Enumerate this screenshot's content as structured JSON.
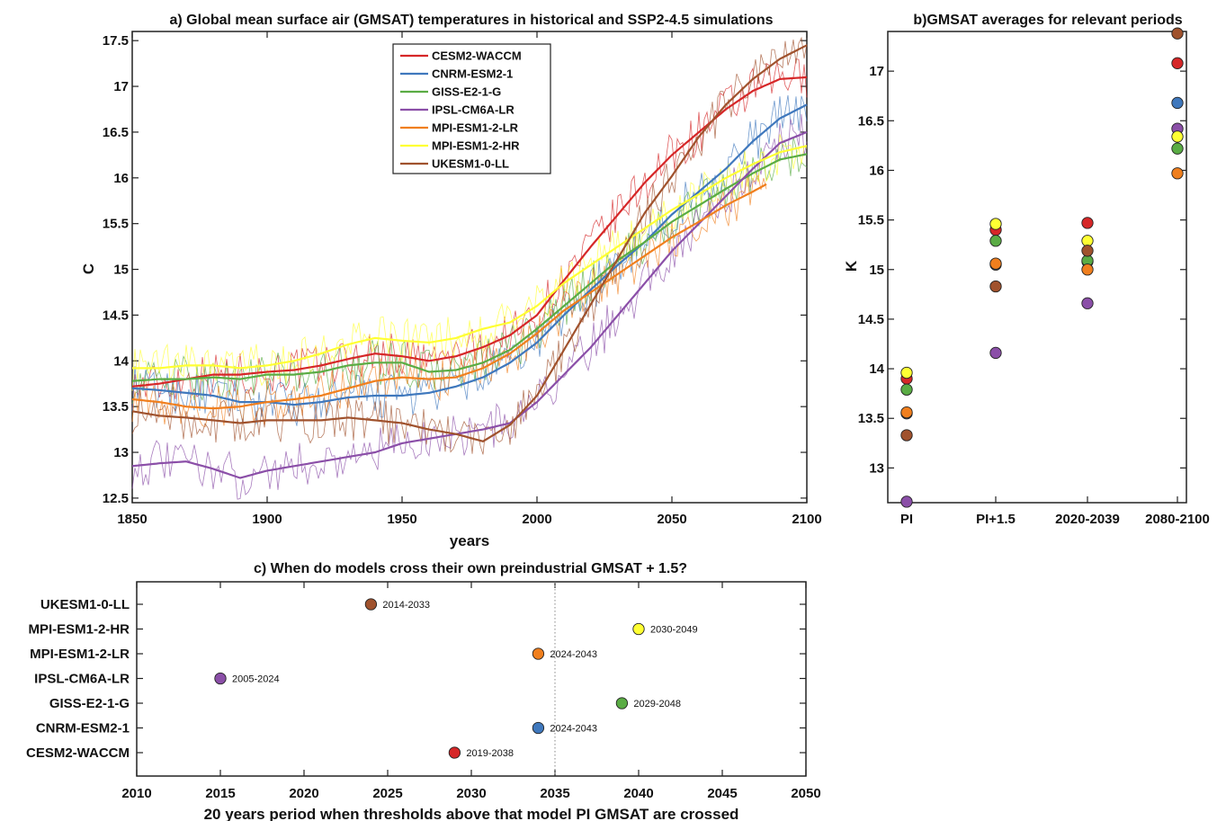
{
  "chart_data": [
    {
      "type": "line",
      "title": "a) Global mean surface air (GMSAT) temperatures in historical and SSP2-4.5 simulations",
      "xlabel": "years",
      "ylabel": "C",
      "xlim": [
        1850,
        2100
      ],
      "ylim": [
        12.45,
        17.6
      ],
      "xticks": [
        1850,
        1900,
        1950,
        2000,
        2050,
        2100
      ],
      "yticks": [
        12.5,
        13,
        13.5,
        14,
        14.5,
        15,
        15.5,
        16,
        16.5,
        17,
        17.5
      ],
      "legend_position": "top-center",
      "grid": false,
      "series": [
        {
          "name": "CESM2-WACCM",
          "color": "#d62728",
          "x": [
            1850,
            1860,
            1870,
            1880,
            1890,
            1900,
            1910,
            1920,
            1930,
            1940,
            1950,
            1960,
            1970,
            1980,
            1990,
            2000,
            2010,
            2020,
            2030,
            2040,
            2050,
            2060,
            2070,
            2080,
            2090,
            2100
          ],
          "y": [
            13.72,
            13.75,
            13.8,
            13.85,
            13.85,
            13.88,
            13.9,
            13.95,
            14.02,
            14.08,
            14.05,
            14.0,
            14.05,
            14.15,
            14.28,
            14.5,
            14.88,
            15.25,
            15.6,
            15.95,
            16.25,
            16.5,
            16.75,
            16.95,
            17.08,
            17.1
          ]
        },
        {
          "name": "CNRM-ESM2-1",
          "color": "#3f78bd",
          "x": [
            1850,
            1860,
            1870,
            1880,
            1890,
            1900,
            1910,
            1920,
            1930,
            1940,
            1950,
            1960,
            1970,
            1980,
            1990,
            2000,
            2010,
            2020,
            2030,
            2040,
            2050,
            2060,
            2070,
            2080,
            2090,
            2100
          ],
          "y": [
            13.7,
            13.68,
            13.65,
            13.62,
            13.55,
            13.55,
            13.52,
            13.55,
            13.6,
            13.62,
            13.62,
            13.65,
            13.72,
            13.82,
            13.98,
            14.2,
            14.5,
            14.78,
            15.05,
            15.3,
            15.6,
            15.85,
            16.1,
            16.4,
            16.65,
            16.8
          ]
        },
        {
          "name": "GISS-E2-1-G",
          "color": "#5aac44",
          "x": [
            1850,
            1860,
            1870,
            1880,
            1890,
            1900,
            1910,
            1920,
            1930,
            1940,
            1950,
            1960,
            1970,
            1980,
            1990,
            2000,
            2010,
            2020,
            2030,
            2040,
            2050,
            2060,
            2070,
            2080,
            2090,
            2100
          ],
          "y": [
            13.78,
            13.8,
            13.8,
            13.82,
            13.8,
            13.85,
            13.85,
            13.88,
            13.95,
            13.98,
            13.98,
            13.88,
            13.9,
            13.98,
            14.12,
            14.35,
            14.6,
            14.85,
            15.1,
            15.3,
            15.52,
            15.7,
            15.88,
            16.05,
            16.2,
            16.26
          ]
        },
        {
          "name": "IPSL-CM6A-LR",
          "color": "#8b4fa8",
          "x": [
            1850,
            1860,
            1870,
            1880,
            1890,
            1900,
            1910,
            1920,
            1930,
            1940,
            1950,
            1960,
            1970,
            1980,
            1990,
            2000,
            2010,
            2020,
            2030,
            2040,
            2050,
            2060,
            2070,
            2080,
            2090,
            2100
          ],
          "y": [
            12.85,
            12.88,
            12.9,
            12.82,
            12.72,
            12.8,
            12.85,
            12.9,
            12.95,
            13.0,
            13.1,
            13.15,
            13.2,
            13.25,
            13.32,
            13.55,
            13.85,
            14.15,
            14.5,
            14.85,
            15.2,
            15.5,
            15.8,
            16.1,
            16.38,
            16.5
          ]
        },
        {
          "name": "MPI-ESM1-2-LR",
          "color": "#f07f1e",
          "x": [
            1850,
            1860,
            1870,
            1880,
            1890,
            1900,
            1910,
            1920,
            1930,
            1940,
            1950,
            1960,
            1970,
            1980,
            1990,
            2000,
            2010,
            2020,
            2030,
            2040,
            2050,
            2060,
            2070,
            2080,
            2085
          ],
          "y": [
            13.58,
            13.55,
            13.5,
            13.48,
            13.5,
            13.55,
            13.58,
            13.62,
            13.7,
            13.78,
            13.82,
            13.8,
            13.82,
            13.92,
            14.08,
            14.3,
            14.55,
            14.75,
            14.95,
            15.15,
            15.35,
            15.52,
            15.7,
            15.85,
            15.93
          ]
        },
        {
          "name": "MPI-ESM1-2-HR",
          "color": "#ffff33",
          "x": [
            1850,
            1860,
            1870,
            1880,
            1890,
            1900,
            1910,
            1920,
            1930,
            1940,
            1950,
            1960,
            1970,
            1980,
            1990,
            2000,
            2010,
            2020,
            2030,
            2040,
            2050,
            2060,
            2070,
            2080,
            2090,
            2100
          ],
          "y": [
            13.92,
            13.92,
            13.95,
            13.95,
            13.92,
            13.95,
            14.0,
            14.08,
            14.18,
            14.25,
            14.22,
            14.2,
            14.25,
            14.35,
            14.42,
            14.6,
            14.85,
            15.05,
            15.25,
            15.45,
            15.65,
            15.82,
            16.0,
            16.15,
            16.28,
            16.35
          ]
        },
        {
          "name": "UKESM1-0-LL",
          "color": "#a0522d",
          "x": [
            1850,
            1860,
            1870,
            1880,
            1890,
            1900,
            1910,
            1920,
            1930,
            1940,
            1950,
            1960,
            1970,
            1980,
            1990,
            2000,
            2010,
            2020,
            2030,
            2040,
            2050,
            2060,
            2070,
            2080,
            2090,
            2100
          ],
          "y": [
            13.45,
            13.4,
            13.38,
            13.35,
            13.32,
            13.35,
            13.35,
            13.35,
            13.38,
            13.35,
            13.32,
            13.25,
            13.2,
            13.12,
            13.3,
            13.62,
            14.12,
            14.62,
            15.12,
            15.62,
            16.02,
            16.45,
            16.8,
            17.08,
            17.3,
            17.45
          ]
        }
      ]
    },
    {
      "type": "scatter",
      "title": "b)GMSAT averages for relevant periods",
      "ylabel": "K",
      "ylim": [
        12.65,
        17.4
      ],
      "yticks": [
        13,
        13.5,
        14,
        14.5,
        15,
        15.5,
        16,
        16.5,
        17
      ],
      "categories": [
        "PI",
        "PI+1.5",
        "2020-2039",
        "2080-2100"
      ],
      "series": [
        {
          "name": "CESM2-WACCM",
          "color": "#d62728",
          "values": [
            13.9,
            15.4,
            15.47,
            17.08
          ]
        },
        {
          "name": "CNRM-ESM2-1",
          "color": "#3f78bd",
          "values": [
            13.55,
            15.05,
            15.08,
            16.68
          ]
        },
        {
          "name": "GISS-E2-1-G",
          "color": "#5aac44",
          "values": [
            13.79,
            15.29,
            15.09,
            16.22
          ]
        },
        {
          "name": "IPSL-CM6A-LR",
          "color": "#8b4fa8",
          "values": [
            12.66,
            14.16,
            14.66,
            16.42
          ]
        },
        {
          "name": "MPI-ESM1-2-LR",
          "color": "#f07f1e",
          "values": [
            13.56,
            15.06,
            15.0,
            15.97
          ]
        },
        {
          "name": "MPI-ESM1-2-HR",
          "color": "#ffff33",
          "values": [
            13.96,
            15.46,
            15.29,
            16.34
          ]
        },
        {
          "name": "UKESM1-0-LL",
          "color": "#a0522d",
          "values": [
            13.33,
            14.83,
            15.19,
            17.38
          ]
        }
      ]
    },
    {
      "type": "scatter",
      "title": "c) When do models cross their own preindustrial GMSAT + 1.5?",
      "xlabel": "20 years period when thresholds above that model PI GMSAT are crossed",
      "xlim": [
        2010,
        2050
      ],
      "xticks": [
        2010,
        2015,
        2020,
        2025,
        2030,
        2035,
        2040,
        2045,
        2050
      ],
      "reference_line_x": 2035,
      "categories": [
        "UKESM1-0-LL",
        "MPI-ESM1-2-HR",
        "MPI-ESM1-2-LR",
        "IPSL-CM6A-LR",
        "GISS-E2-1-G",
        "CNRM-ESM2-1",
        "CESM2-WACCM"
      ],
      "values": [
        2024,
        2040,
        2034,
        2015,
        2039,
        2034,
        2029
      ],
      "labels": [
        "2014-2033",
        "2030-2049",
        "2024-2043",
        "2005-2024",
        "2029-2048",
        "2024-2043",
        "2019-2038"
      ],
      "colors": [
        "#a0522d",
        "#ffff33",
        "#f07f1e",
        "#8b4fa8",
        "#5aac44",
        "#3f78bd",
        "#d62728"
      ]
    }
  ]
}
